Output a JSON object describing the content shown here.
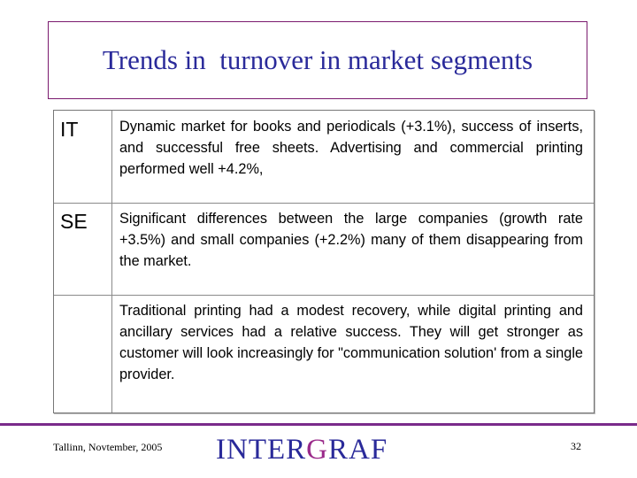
{
  "slide": {
    "title": "Trends in  turnover in market segments"
  },
  "table": {
    "rows": [
      {
        "code": "IT",
        "text": "Dynamic market for books and periodicals (+3.1%), success of inserts, and successful free sheets.  Advertising and commercial printing performed well +4.2%,"
      },
      {
        "code": "SE",
        "text": "Significant differences between the large companies (growth rate +3.5%) and small companies (+2.2%) many of them disappearing from the market."
      },
      {
        "code": "",
        "text": "Traditional printing had a modest recovery, while digital printing and ancillary services had a relative success. They will get stronger as customer will look increasingly for \"communication solution' from a single provider."
      }
    ]
  },
  "footer": {
    "place_date": "Tallinn, Novtember, 2005",
    "logo": {
      "part1": "INTER",
      "part2": "G",
      "part3": "RAF"
    },
    "page_number": "32",
    "colors": {
      "title_blue": "#2a2a9a",
      "accent_purple": "#7a2a8a"
    }
  }
}
